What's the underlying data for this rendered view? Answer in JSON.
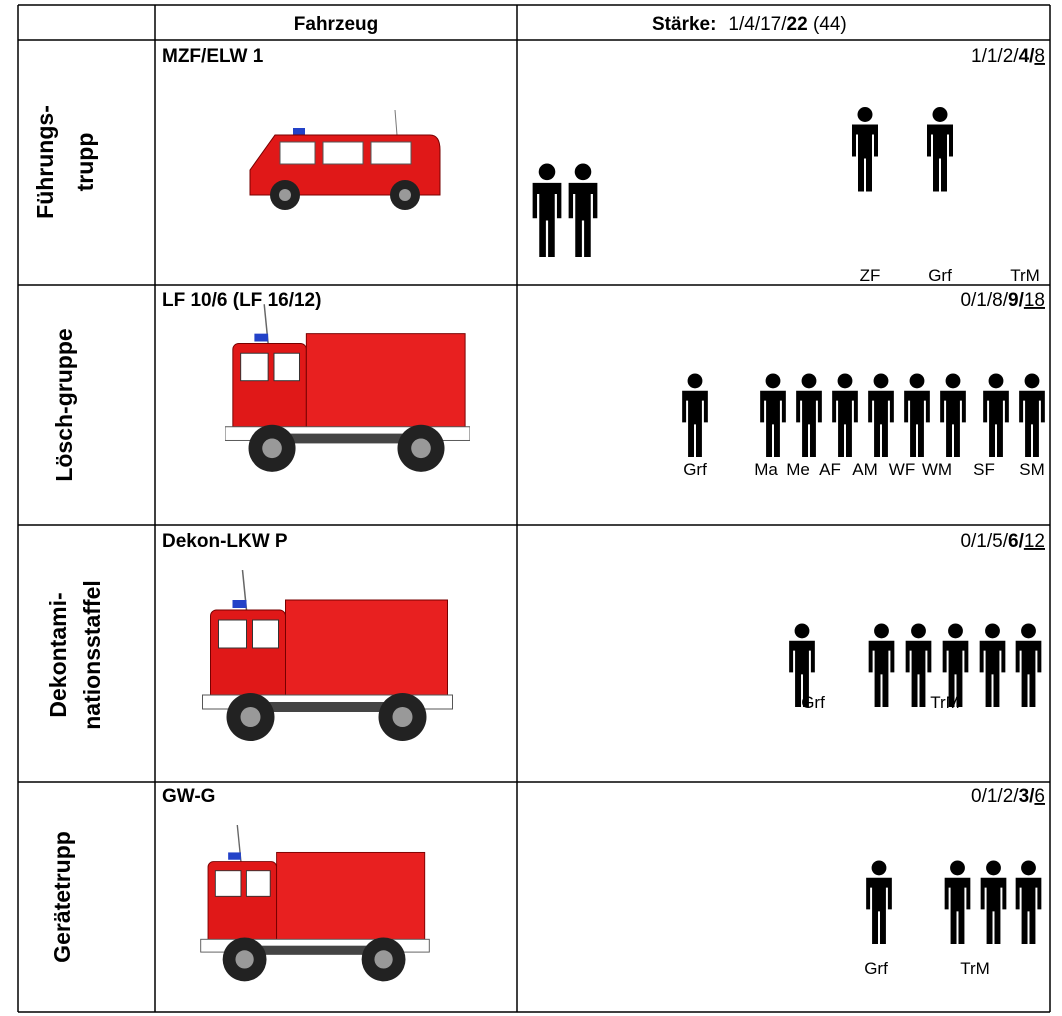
{
  "header": {
    "vehicle": "Fahrzeug",
    "strength_label": "Stärke:",
    "strength": {
      "plain": "1/4/17/",
      "bold": "22",
      "total": " (44)"
    }
  },
  "rows": [
    {
      "unit": [
        "Führungs-",
        "trupp"
      ],
      "vehicle": "MZF/ELW 1",
      "strength": {
        "plain": "1/1/2/",
        "bold": "4/",
        "underlined": "8"
      },
      "roles": [
        "ZF",
        "Grf",
        "TrM"
      ]
    },
    {
      "unit": [
        "Lösch-gruppe"
      ],
      "vehicle": "LF 10/6 (LF 16/12)",
      "strength": {
        "plain": "0/1/8/",
        "bold": "9/",
        "underlined": "18"
      },
      "roles": [
        "Grf",
        "Ma",
        "Me",
        "AF",
        "AM",
        "WF",
        "WM",
        "SF",
        "SM"
      ]
    },
    {
      "unit": [
        "Dekontami-",
        "nationsstaffel"
      ],
      "vehicle": "Dekon-LKW P",
      "strength": {
        "plain": "0/1/5/",
        "bold": "6/",
        "underlined": "12"
      },
      "roles": [
        "Grf",
        "TrM"
      ]
    },
    {
      "unit": [
        "Gerätetrupp"
      ],
      "vehicle": "GW-G",
      "strength": {
        "plain": "0/1/2/",
        "bold": "3/",
        "underlined": "6"
      },
      "roles": [
        "Grf",
        "TrM"
      ]
    }
  ]
}
